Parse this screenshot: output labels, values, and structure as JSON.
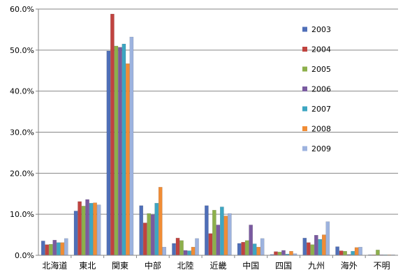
{
  "chart_data": {
    "type": "bar",
    "title": "",
    "xlabel": "",
    "ylabel": "",
    "ylim": [
      0,
      60
    ],
    "yticks": [
      "0.0%",
      "10.0%",
      "20.0%",
      "30.0%",
      "40.0%",
      "50.0%",
      "60.0%"
    ],
    "grid": true,
    "legend_position": "right",
    "categories": [
      "北海道",
      "東北",
      "関東",
      "中部",
      "北陸",
      "近畿",
      "中国",
      "四国",
      "九州",
      "海外",
      "不明"
    ],
    "series": [
      {
        "name": "2003",
        "color": "#4F6FB8",
        "values": [
          3.5,
          10.8,
          49.8,
          12.1,
          2.9,
          12.1,
          2.9,
          0.2,
          4.2,
          2.1,
          0.1
        ]
      },
      {
        "name": "2004",
        "color": "#C0433F",
        "values": [
          2.6,
          13.1,
          58.8,
          7.9,
          4.2,
          5.3,
          3.2,
          0.9,
          3.1,
          1.1,
          0.1
        ]
      },
      {
        "name": "2005",
        "color": "#8DB04B",
        "values": [
          2.7,
          12.0,
          51.0,
          10.2,
          3.6,
          11.0,
          3.6,
          0.8,
          2.6,
          1.0,
          1.3
        ]
      },
      {
        "name": "2006",
        "color": "#7A5AA0",
        "values": [
          3.7,
          13.6,
          50.7,
          9.9,
          1.2,
          7.4,
          7.4,
          1.2,
          4.9,
          0.2,
          0.1
        ]
      },
      {
        "name": "2007",
        "color": "#3DA6C2",
        "values": [
          3.1,
          12.7,
          51.5,
          12.7,
          1.1,
          11.8,
          2.8,
          0.3,
          3.9,
          1.0,
          0.1
        ]
      },
      {
        "name": "2008",
        "color": "#F08C35",
        "values": [
          3.1,
          12.8,
          46.7,
          16.6,
          2.0,
          9.6,
          2.0,
          1.0,
          5.0,
          1.9,
          0.1
        ]
      },
      {
        "name": "2009",
        "color": "#9DB3DF",
        "values": [
          4.1,
          12.3,
          53.2,
          2.0,
          4.1,
          10.2,
          4.1,
          0.4,
          8.2,
          2.0,
          0.1
        ]
      }
    ]
  }
}
